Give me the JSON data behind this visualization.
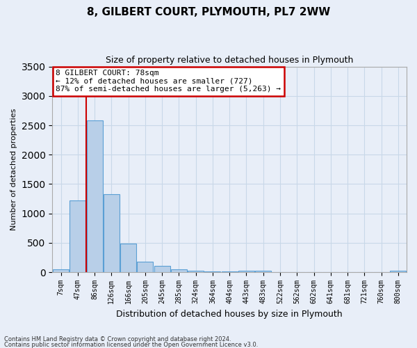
{
  "title": "8, GILBERT COURT, PLYMOUTH, PL7 2WW",
  "subtitle": "Size of property relative to detached houses in Plymouth",
  "xlabel": "Distribution of detached houses by size in Plymouth",
  "ylabel": "Number of detached properties",
  "bin_labels": [
    "7sqm",
    "47sqm",
    "86sqm",
    "126sqm",
    "166sqm",
    "205sqm",
    "245sqm",
    "285sqm",
    "324sqm",
    "364sqm",
    "404sqm",
    "443sqm",
    "483sqm",
    "522sqm",
    "562sqm",
    "602sqm",
    "641sqm",
    "681sqm",
    "721sqm",
    "760sqm",
    "800sqm"
  ],
  "bar_values": [
    50,
    1220,
    2580,
    1330,
    490,
    175,
    105,
    45,
    30,
    20,
    15,
    25,
    25,
    0,
    0,
    0,
    0,
    0,
    0,
    0,
    25
  ],
  "bar_color": "#b8cfe8",
  "bar_edge_color": "#5a9fd4",
  "annotation_title": "8 GILBERT COURT: 78sqm",
  "annotation_line1": "← 12% of detached houses are smaller (727)",
  "annotation_line2": "87% of semi-detached houses are larger (5,263) →",
  "annotation_box_color": "#ffffff",
  "annotation_border_color": "#cc0000",
  "vline_color": "#cc0000",
  "grid_color": "#c8d8e8",
  "ylim": [
    0,
    3500
  ],
  "footer1": "Contains HM Land Registry data © Crown copyright and database right 2024.",
  "footer2": "Contains public sector information licensed under the Open Government Licence v3.0.",
  "bg_color": "#e8eef8"
}
